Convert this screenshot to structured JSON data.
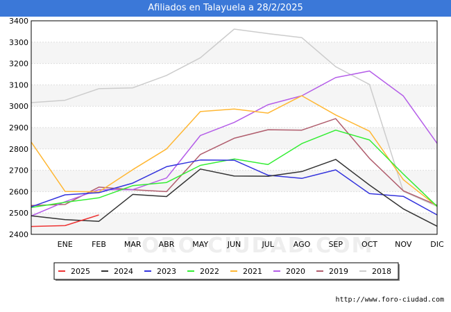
{
  "title": "Afiliados en Talayuela a 28/2/2025",
  "footer_url": "http://www.foro-ciudad.com",
  "watermark": "FORO-CIUDAD.COM",
  "chart_data": {
    "type": "line",
    "title": "Afiliados en Talayuela a 28/2/2025",
    "xlabel": "",
    "ylabel": "",
    "categories": [
      "",
      "ENE",
      "FEB",
      "MAR",
      "ABR",
      "MAY",
      "JUN",
      "JUL",
      "AGO",
      "SEP",
      "OCT",
      "NOV",
      "DIC"
    ],
    "ylim": [
      2400,
      3400
    ],
    "yticks": [
      2400,
      2500,
      2600,
      2700,
      2800,
      2900,
      3000,
      3100,
      3200,
      3300,
      3400
    ],
    "grid": "horizontal",
    "legend_position": "bottom",
    "series": [
      {
        "name": "2025",
        "color": "#ee3333",
        "values": [
          2437,
          2441,
          2491,
          null,
          null,
          null,
          null,
          null,
          null,
          null,
          null,
          null,
          null
        ]
      },
      {
        "name": "2024",
        "color": "#333333",
        "values": [
          2487,
          2469,
          2461,
          2587,
          2577,
          2706,
          2673,
          2672,
          2694,
          2751,
          2631,
          2519,
          2438
        ]
      },
      {
        "name": "2023",
        "color": "#3333dd",
        "values": [
          2529,
          2585,
          2595,
          2640,
          2717,
          2748,
          2747,
          2677,
          2662,
          2702,
          2591,
          2578,
          2491
        ]
      },
      {
        "name": "2022",
        "color": "#33ee33",
        "values": [
          2526,
          2550,
          2571,
          2628,
          2643,
          2723,
          2753,
          2727,
          2825,
          2888,
          2842,
          2682,
          2531
        ]
      },
      {
        "name": "2021",
        "color": "#ffb733",
        "values": [
          2832,
          2601,
          2599,
          2703,
          2800,
          2975,
          2987,
          2968,
          3049,
          2959,
          2883,
          2656,
          2531
        ]
      },
      {
        "name": "2020",
        "color": "#b45de8",
        "values": [
          2486,
          2553,
          2609,
          2609,
          2664,
          2863,
          2924,
          3007,
          3049,
          3134,
          3165,
          3048,
          2826
        ]
      },
      {
        "name": "2019",
        "color": "#b05d6d",
        "values": [
          2535,
          2540,
          2621,
          2609,
          2600,
          2774,
          2850,
          2890,
          2888,
          2942,
          2756,
          2604,
          2536
        ]
      },
      {
        "name": "2018",
        "color": "#cccccc",
        "values": [
          3017,
          3028,
          3082,
          3086,
          3144,
          3227,
          3361,
          3340,
          3321,
          3185,
          3102,
          2601,
          2531
        ]
      }
    ]
  }
}
